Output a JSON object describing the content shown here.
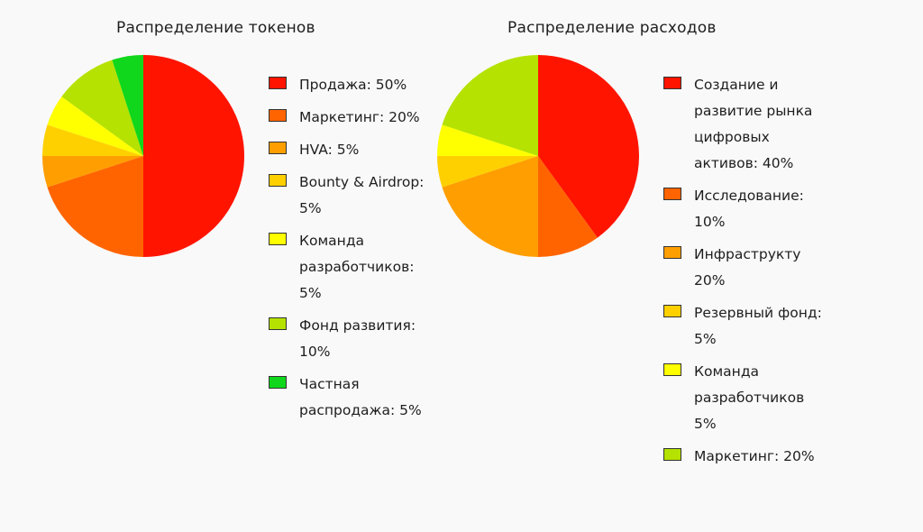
{
  "chart_data": [
    {
      "type": "pie",
      "title": "Распределение токенов",
      "start": "top",
      "direction": "clockwise",
      "slices": [
        {
          "label": "Продажа: 50%",
          "value": 50,
          "color": "#ff1400"
        },
        {
          "label": "Маркетинг: 20%",
          "value": 20,
          "color": "#ff6400"
        },
        {
          "label": "HVA: 5%",
          "value": 5,
          "color": "#ff9e00"
        },
        {
          "label": "Bounty & Airdrop: 5%",
          "value": 5,
          "color": "#ffd000"
        },
        {
          "label": "Команда разработчиков: 5%",
          "value": 5,
          "color": "#ffff00"
        },
        {
          "label": "Фонд развития: 10%",
          "value": 10,
          "color": "#b5e200"
        },
        {
          "label": "Частная распродажа: 5%",
          "value": 5,
          "color": "#10d71b"
        }
      ]
    },
    {
      "type": "pie",
      "title": "Распределение расходов",
      "start": "top",
      "direction": "clockwise",
      "slices": [
        {
          "label": "Создание и развитие рынка цифровых активов: 40%",
          "value": 40,
          "color": "#ff1400"
        },
        {
          "label": "Исследование: 10%",
          "value": 10,
          "color": "#ff6400"
        },
        {
          "label": "Инфраструкту 20%",
          "value": 20,
          "color": "#ff9e00"
        },
        {
          "label": "Резервный фонд: 5%",
          "value": 5,
          "color": "#ffd000"
        },
        {
          "label": "Команда разработчиков 5%",
          "value": 5,
          "color": "#ffff00"
        },
        {
          "label": "Маркетинг: 20%",
          "value": 20,
          "color": "#b5e200"
        }
      ]
    }
  ]
}
